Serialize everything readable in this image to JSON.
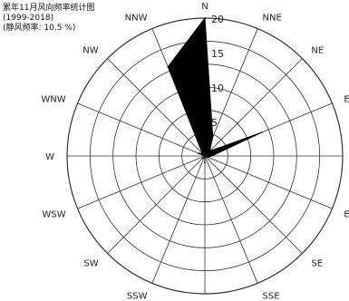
{
  "chart_data": {
    "type": "radar",
    "title": "累年11月风向频率统计图",
    "subtitle": "(1999-2018)",
    "note": "(静风频率: 10.5 %)",
    "directions": [
      "N",
      "NNE",
      "NE",
      "ENE",
      "E",
      "ESE",
      "SE",
      "SSE",
      "S",
      "SSW",
      "SW",
      "WSW",
      "W",
      "WNW",
      "NW",
      "NNW"
    ],
    "values": [
      20,
      3,
      1,
      9,
      1,
      0.5,
      0,
      0,
      1,
      0,
      0.5,
      0,
      0,
      1,
      0.5,
      14
    ],
    "rlim": [
      0,
      20
    ],
    "r_ticks": [
      5,
      10,
      15,
      20
    ],
    "r_tick_labels": [
      "5",
      "10",
      "15",
      "20"
    ],
    "grid": true,
    "fill_color": "#000000"
  }
}
